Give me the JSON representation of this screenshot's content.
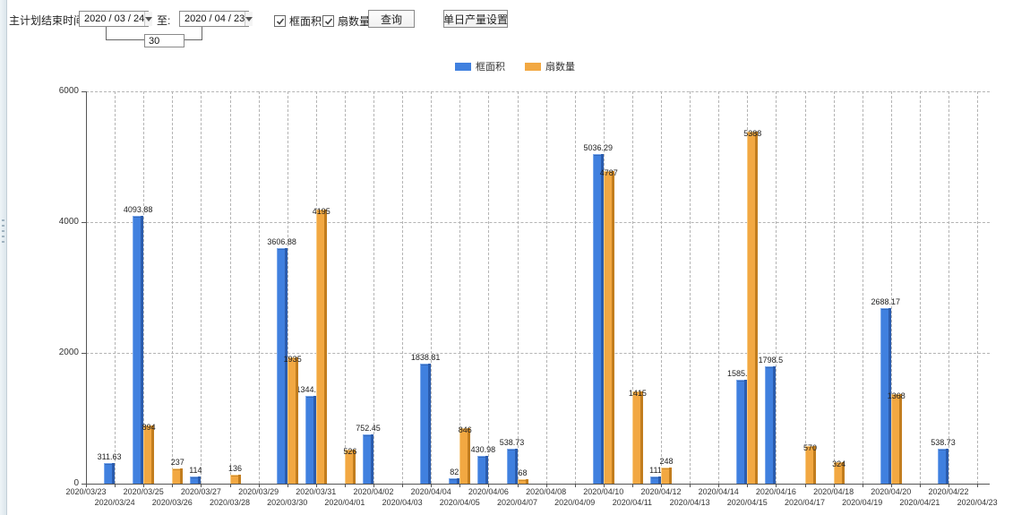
{
  "toolbar": {
    "plan_end_label": "主计划结束时间:",
    "start_date": "2020 / 03 / 24",
    "to_label": "至:",
    "end_date": "2020 / 04 / 23",
    "days_value": "30",
    "checkbox_frame_area": "框面积",
    "checkbox_fan_count": "扇数量",
    "query_button": "查询",
    "daily_output_button": "单日产量设置"
  },
  "legend": {
    "items": [
      {
        "label": "框面积",
        "color": "#4080df"
      },
      {
        "label": "扇数量",
        "color": "#f2a842"
      }
    ]
  },
  "colors": {
    "series_blue": "#4080df",
    "series_orange": "#f2a842",
    "grid": "#b4b4b4",
    "axis": "#555555"
  },
  "chart_data": {
    "type": "bar",
    "title": "",
    "xlabel": "",
    "ylabel": "",
    "ylim": [
      0,
      6000
    ],
    "yticks": [
      0,
      2000,
      4000,
      6000
    ],
    "grid": true,
    "legend_position": "top",
    "categories": [
      "2020/03/23",
      "2020/03/24",
      "2020/03/25",
      "2020/03/26",
      "2020/03/27",
      "2020/03/28",
      "2020/03/29",
      "2020/03/30",
      "2020/03/31",
      "2020/04/01",
      "2020/04/02",
      "2020/04/03",
      "2020/04/04",
      "2020/04/05",
      "2020/04/06",
      "2020/04/07",
      "2020/04/08",
      "2020/04/09",
      "2020/04/10",
      "2020/04/11",
      "2020/04/12",
      "2020/04/13",
      "2020/04/14",
      "2020/04/15",
      "2020/04/16",
      "2020/04/17",
      "2020/04/18",
      "2020/04/19",
      "2020/04/20",
      "2020/04/21",
      "2020/04/22",
      "2020/04/23"
    ],
    "series": [
      {
        "name": "框面积",
        "color": "#4080df",
        "values": [
          null,
          311.63,
          4093.88,
          null,
          114,
          null,
          null,
          3606.88,
          1344.95,
          null,
          752.45,
          null,
          1838.81,
          82,
          430.98,
          538.73,
          null,
          null,
          5036.29,
          null,
          111,
          null,
          null,
          1585.96,
          1798.5,
          null,
          null,
          null,
          2688.17,
          null,
          538.73,
          null
        ]
      },
      {
        "name": "扇数量",
        "color": "#f2a842",
        "values": [
          null,
          null,
          894,
          237,
          null,
          136,
          null,
          1935,
          4195,
          526,
          null,
          null,
          null,
          846,
          null,
          68,
          null,
          null,
          4787,
          1415,
          248,
          null,
          null,
          5388,
          null,
          570,
          324,
          null,
          1368,
          null,
          null,
          null
        ]
      }
    ]
  }
}
